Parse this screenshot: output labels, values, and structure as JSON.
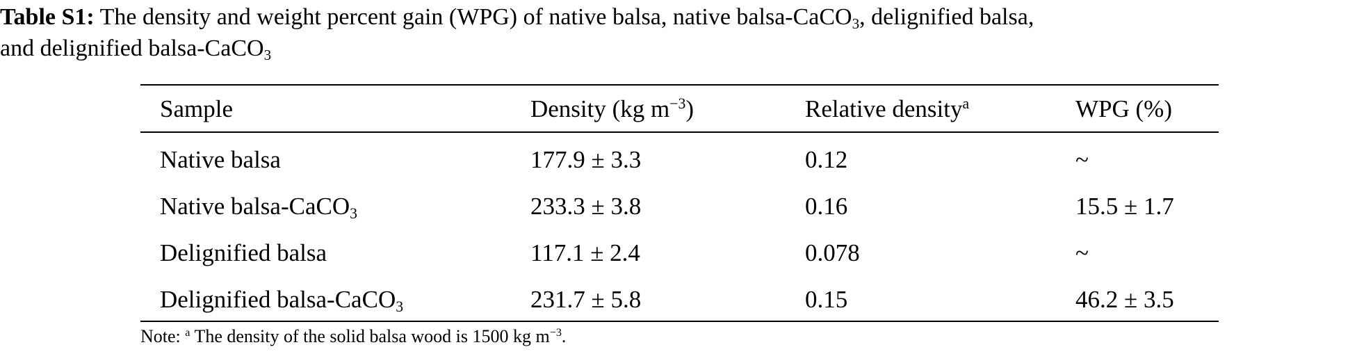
{
  "caption": {
    "label": "Table S1:",
    "text_part1": "The density and weight percent gain (WPG) of native balsa, native balsa-CaCO",
    "sub1": "3",
    "text_part2": ", delignified balsa,",
    "line2_text": "and delignified balsa-CaCO",
    "sub2": "3"
  },
  "table": {
    "headers": {
      "sample": "Sample",
      "density_text": "Density (kg m",
      "density_sup": "−3",
      "density_close": ")",
      "relative_text": "Relative density",
      "relative_sup": "a",
      "wpg": "WPG (%)"
    },
    "rows": [
      {
        "sample": "Native balsa",
        "sample_sub": "",
        "density": "177.9 ± 3.3",
        "relative": "0.12",
        "wpg": "~"
      },
      {
        "sample": "Native balsa-CaCO",
        "sample_sub": "3",
        "density": "233.3 ± 3.8",
        "relative": "0.16",
        "wpg": "15.5 ± 1.7"
      },
      {
        "sample": "Delignified balsa",
        "sample_sub": "",
        "density": "117.1 ± 2.4",
        "relative": "0.078",
        "wpg": "~"
      },
      {
        "sample": "Delignified balsa-CaCO",
        "sample_sub": "3",
        "density": "231.7 ± 5.8",
        "relative": "0.15",
        "wpg": "46.2 ± 3.5"
      }
    ]
  },
  "note": {
    "prefix": "Note: ",
    "sup": "a",
    "text": " The density of the solid balsa wood is 1500 kg m",
    "unit_sup": "−3",
    "end": "."
  }
}
